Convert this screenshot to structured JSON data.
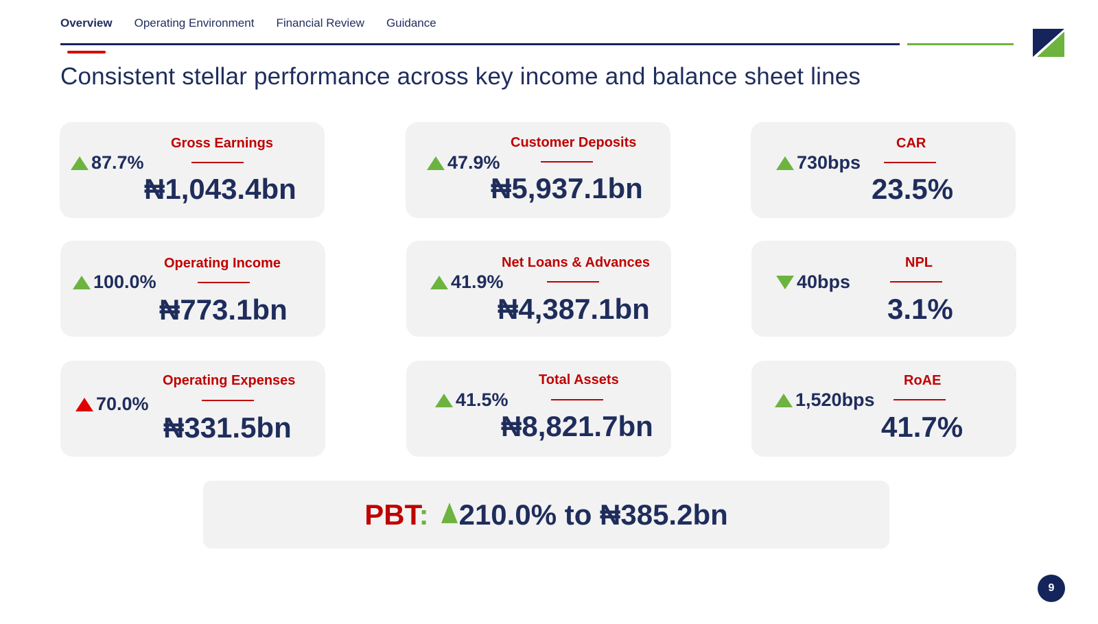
{
  "nav": {
    "tabs": [
      {
        "label": "Overview"
      },
      {
        "label": "Operating Environment"
      },
      {
        "label": "Financial Review"
      },
      {
        "label": "Guidance"
      }
    ]
  },
  "title": "Consistent stellar performance across key income and balance sheet lines",
  "colors": {
    "navy": "#1f2d5c",
    "red": "#c00000",
    "green": "#6db33f",
    "card_bg": "#f2f2f2"
  },
  "cards": [
    {
      "label": "Gross Earnings",
      "change": "87.7%",
      "direction": "up-green",
      "value": "₦1,043.4bn"
    },
    {
      "label": "Customer Deposits",
      "change": "47.9%",
      "direction": "up-green",
      "value": "₦5,937.1bn"
    },
    {
      "label": "CAR",
      "change": "730bps",
      "direction": "up-green",
      "value": "23.5%"
    },
    {
      "label": "Operating Income",
      "change": "100.0%",
      "direction": "up-green",
      "value": "₦773.1bn"
    },
    {
      "label": "Net Loans & Advances",
      "change": "41.9%",
      "direction": "up-green",
      "value": "₦4,387.1bn"
    },
    {
      "label": "NPL",
      "change": "40bps",
      "direction": "down-green",
      "value": "3.1%"
    },
    {
      "label": "Operating Expenses",
      "change": "70.0%",
      "direction": "up-red",
      "value": "₦331.5bn"
    },
    {
      "label": "Total Assets",
      "change": "41.5%",
      "direction": "up-green",
      "value": "₦8,821.7bn"
    },
    {
      "label": "RoAE",
      "change": "1,520bps",
      "direction": "up-green",
      "value": "41.7%"
    }
  ],
  "pbt": {
    "label": "PBT",
    "colon": ":",
    "text": "210.0% to ₦385.2bn"
  },
  "page_number": "9"
}
